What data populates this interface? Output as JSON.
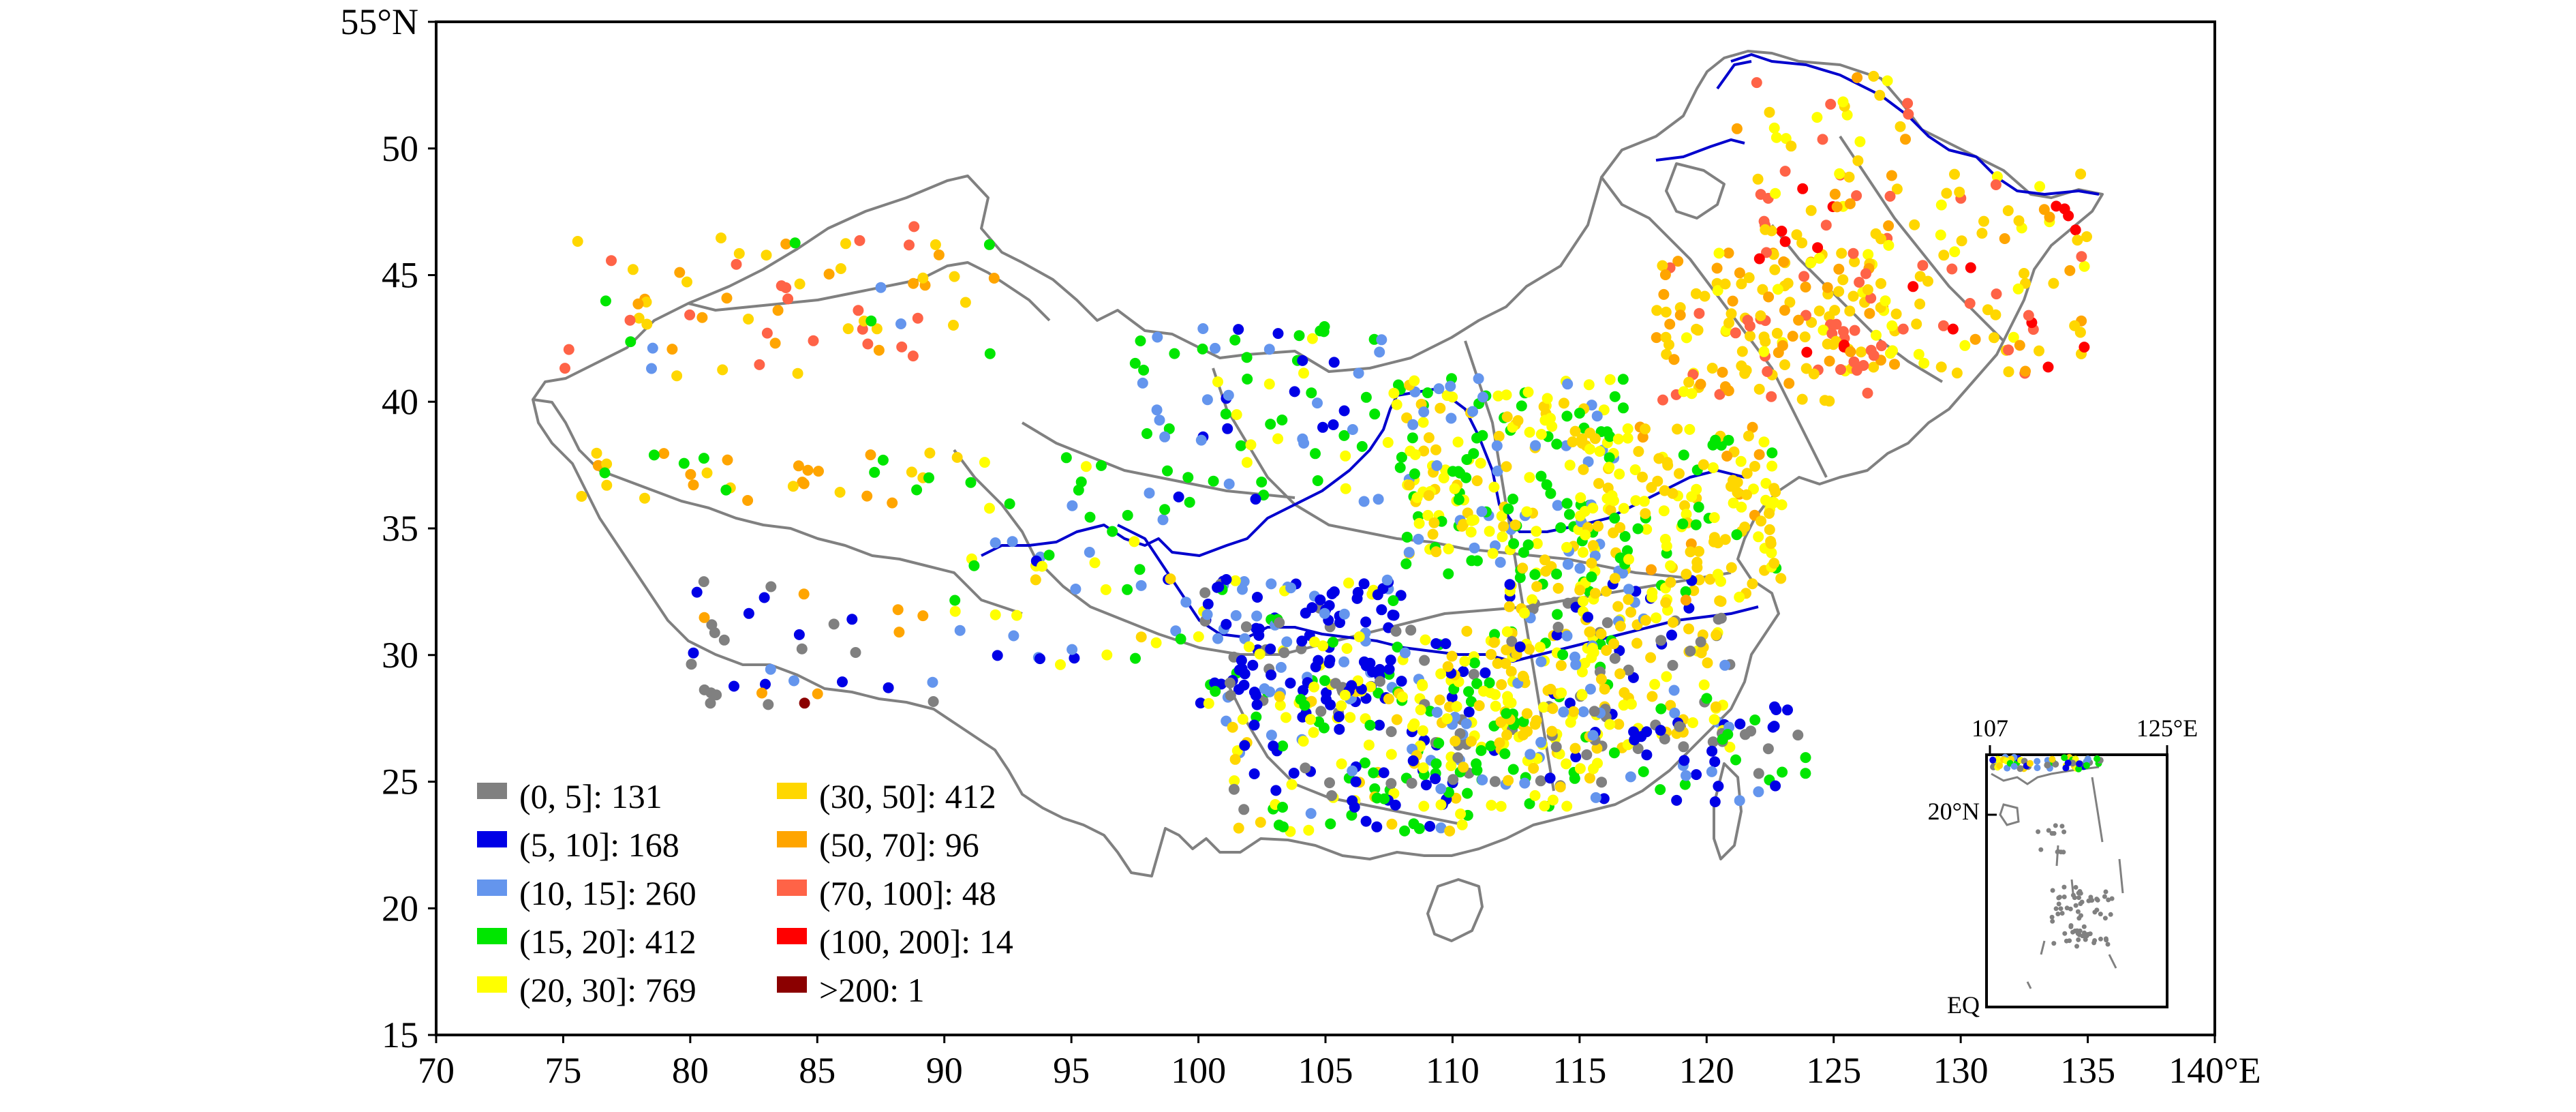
{
  "map": {
    "lon_range": [
      70,
      140
    ],
    "lat_range": [
      15,
      55
    ],
    "x_tick_labels": [
      "70",
      "75",
      "80",
      "85",
      "90",
      "95",
      "100",
      "105",
      "110",
      "115",
      "120",
      "125",
      "130",
      "135",
      "140°E"
    ],
    "y_tick_labels": [
      "15",
      "20",
      "25",
      "30",
      "35",
      "40",
      "45",
      "50",
      "55°N"
    ],
    "legend": [
      {
        "label": "(0, 5]: 131",
        "color": "#808080"
      },
      {
        "label": "(5, 10]: 168",
        "color": "#0000e6"
      },
      {
        "label": "(10, 15]: 260",
        "color": "#6495ed"
      },
      {
        "label": "(15, 20]: 412",
        "color": "#00e600"
      },
      {
        "label": "(20, 30]: 769",
        "color": "#ffff00"
      },
      {
        "label": "(30, 50]: 412",
        "color": "#ffd700"
      },
      {
        "label": "(50, 70]: 96",
        "color": "#ffa500"
      },
      {
        "label": "(70, 100]: 48",
        "color": "#ff6347"
      },
      {
        "label": "(100, 200]: 14",
        "color": "#ff0000"
      },
      {
        "label": ">200: 1",
        "color": "#8b0000"
      }
    ],
    "inset": {
      "top_left_label": "107",
      "top_right_label": "125°E",
      "lat_label": "20°N",
      "bottom_label": "EQ"
    },
    "colors": {
      "border": "#808080",
      "river": "#0000cd"
    }
  }
}
